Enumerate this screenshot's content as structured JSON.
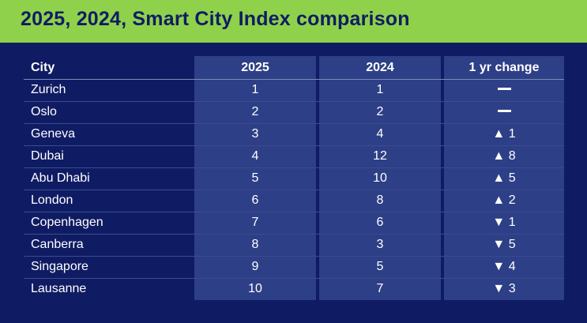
{
  "title": "2025, 2024, Smart City Index comparison",
  "colors": {
    "header_bg": "#8fd14a",
    "page_bg": "#0f1c64",
    "column_shade": "#2d3f86",
    "text": "#ffffff"
  },
  "chart_data": {
    "type": "table",
    "title": "2025, 2024, Smart City Index comparison",
    "columns": [
      "City",
      "2025",
      "2024",
      "1 yr change"
    ],
    "rows": [
      {
        "city": "Zurich",
        "r2025": "1",
        "r2024": "1",
        "change": "",
        "direction": "none"
      },
      {
        "city": "Oslo",
        "r2025": "2",
        "r2024": "2",
        "change": "",
        "direction": "none"
      },
      {
        "city": "Geneva",
        "r2025": "3",
        "r2024": "4",
        "change": "▲ 1",
        "direction": "up"
      },
      {
        "city": "Dubai",
        "r2025": "4",
        "r2024": "12",
        "change": "▲ 8",
        "direction": "up"
      },
      {
        "city": "Abu Dhabi",
        "r2025": "5",
        "r2024": "10",
        "change": "▲ 5",
        "direction": "up"
      },
      {
        "city": "London",
        "r2025": "6",
        "r2024": "8",
        "change": "▲ 2",
        "direction": "up"
      },
      {
        "city": "Copenhagen",
        "r2025": "7",
        "r2024": "6",
        "change": "▼ 1",
        "direction": "down"
      },
      {
        "city": "Canberra",
        "r2025": "8",
        "r2024": "3",
        "change": "▼ 5",
        "direction": "down"
      },
      {
        "city": "Singapore",
        "r2025": "9",
        "r2024": "5",
        "change": "▼ 4",
        "direction": "down"
      },
      {
        "city": "Lausanne",
        "r2025": "10",
        "r2024": "7",
        "change": "▼ 3",
        "direction": "down"
      }
    ]
  }
}
